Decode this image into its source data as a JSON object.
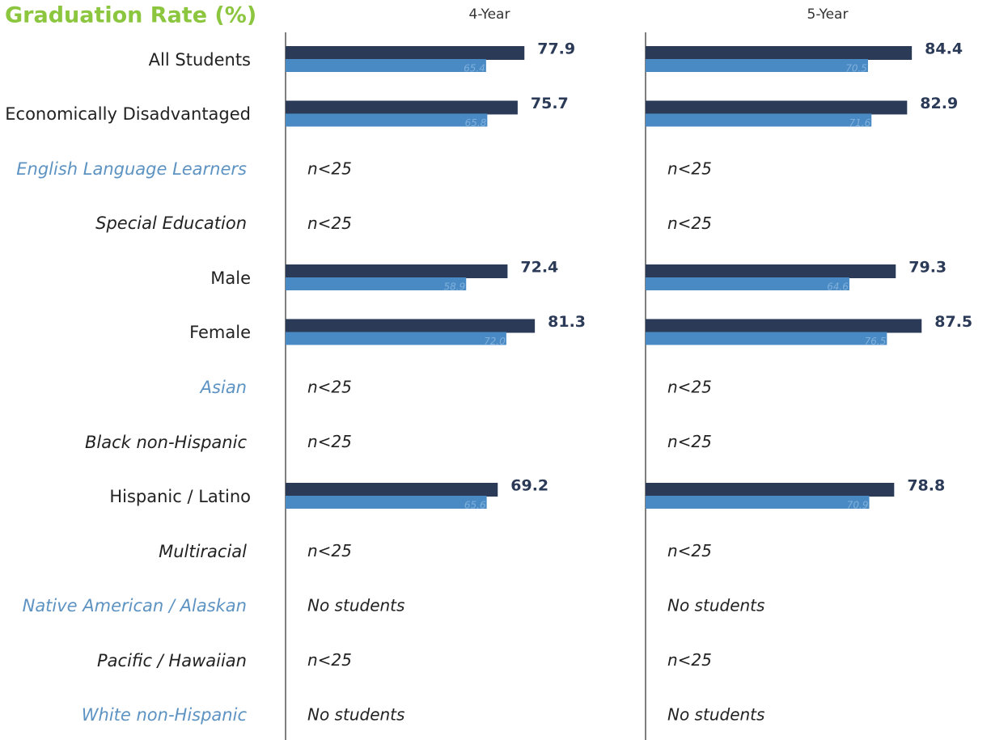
{
  "chart_data": {
    "type": "bar",
    "title": "Graduation Rate (%)",
    "categories": [
      "All Students",
      "Economically Disadvantaged",
      "English Language Learners",
      "Special Education",
      "Male",
      "Female",
      "Asian",
      "Black non-Hispanic",
      "Hispanic / Latino",
      "Multiracial",
      "Native American / Alaskan",
      "Pacific / Hawaiian",
      "White non-Hispanic"
    ],
    "xlim": [
      0,
      100
    ],
    "panels": [
      {
        "title": "4-Year",
        "series": [
          {
            "color": "#2b3a57",
            "values": [
              77.9,
              75.7,
              null,
              null,
              72.4,
              81.3,
              null,
              null,
              69.2,
              null,
              null,
              null,
              null
            ]
          },
          {
            "color": "#4a8ac4",
            "values": [
              65.4,
              65.8,
              null,
              null,
              58.9,
              72.0,
              null,
              null,
              65.6,
              null,
              null,
              null,
              null
            ],
            "value_labels": [
              "65.4",
              "65.8",
              null,
              null,
              "58.9",
              "72.0",
              null,
              null,
              "65.6",
              null,
              null,
              null,
              null
            ]
          }
        ],
        "notes": [
          null,
          null,
          "n<25",
          "n<25",
          null,
          null,
          "n<25",
          "n<25",
          null,
          "n<25",
          "No students",
          "n<25",
          "No students"
        ]
      },
      {
        "title": "5-Year",
        "series": [
          {
            "color": "#2b3a57",
            "values": [
              84.4,
              82.9,
              null,
              null,
              79.3,
              87.5,
              null,
              null,
              78.8,
              null,
              null,
              null,
              null
            ]
          },
          {
            "color": "#4a8ac4",
            "values": [
              70.5,
              71.6,
              null,
              null,
              64.6,
              76.5,
              null,
              null,
              70.9,
              null,
              null,
              null,
              null
            ]
          }
        ],
        "notes": [
          null,
          null,
          "n<25",
          "n<25",
          null,
          null,
          "n<25",
          "n<25",
          null,
          "n<25",
          "No students",
          "n<25",
          "No students"
        ]
      }
    ]
  }
}
